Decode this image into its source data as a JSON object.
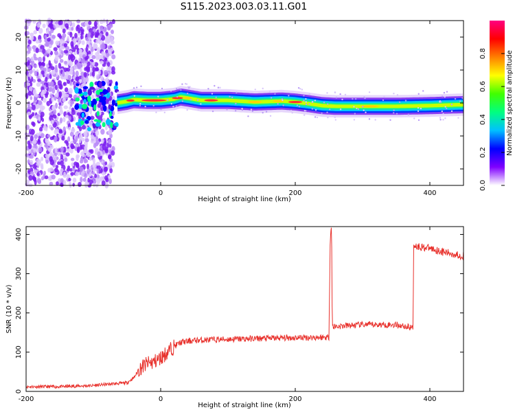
{
  "title": "S115.2023.003.03.11.G01",
  "chart_data": [
    {
      "type": "heatmap",
      "xlabel": "Height of straight line (km)",
      "ylabel": "Frequency (Hz)",
      "xlim": [
        -200,
        450
      ],
      "ylim": [
        -25,
        25
      ],
      "xticks": [
        -200,
        0,
        200,
        400
      ],
      "yticks": [
        20,
        10,
        0,
        -10,
        -20
      ],
      "colorbar": {
        "label": "Normalized spectral amplitude",
        "range": [
          0,
          1
        ],
        "ticks": [
          "0.0",
          "0.2",
          "0.4",
          "0.6",
          "0.8"
        ],
        "colormap": [
          "#ffffff",
          "#8000ff",
          "#0000ff",
          "#00c0ff",
          "#00ff80",
          "#40ff00",
          "#ffff00",
          "#ff8000",
          "#ff0000",
          "#ff0080"
        ]
      },
      "ridge": {
        "x": [
          -65,
          -50,
          -40,
          -20,
          0,
          20,
          30,
          40,
          60,
          100,
          140,
          180,
          200,
          220,
          240,
          260,
          300,
          350,
          400,
          450
        ],
        "y": [
          0,
          0.5,
          1.0,
          0.8,
          0.8,
          1.2,
          1.8,
          1.5,
          0.8,
          0.8,
          0.3,
          0.6,
          0.3,
          -0.2,
          -0.8,
          -1.0,
          -1.0,
          -1.0,
          -0.8,
          -0.5
        ]
      },
      "noise_region": {
        "x": [
          -200,
          -70
        ],
        "y": [
          -25,
          25
        ]
      },
      "grid": false,
      "legend": "none"
    },
    {
      "type": "line",
      "xlabel": "Height of straight line (km)",
      "ylabel": "SNR (10 * v/v)",
      "xlim": [
        -200,
        450
      ],
      "ylim": [
        0,
        420
      ],
      "xticks": [
        -200,
        0,
        200,
        400
      ],
      "yticks": [
        0,
        100,
        200,
        300,
        400
      ],
      "color": "#e8302b",
      "series": [
        {
          "x": [
            -200,
            -150,
            -100,
            -80,
            -50,
            -40,
            -30,
            -20,
            -10,
            0,
            10,
            20,
            30,
            50,
            100,
            150,
            200,
            250,
            252,
            254,
            255,
            256,
            300,
            350,
            375,
            376,
            380,
            400,
            420,
            450
          ],
          "y": [
            12,
            12,
            15,
            18,
            22,
            35,
            60,
            70,
            75,
            85,
            100,
            115,
            125,
            130,
            133,
            135,
            137,
            138,
            400,
            420,
            165,
            165,
            170,
            170,
            162,
            375,
            370,
            365,
            355,
            345
          ]
        }
      ],
      "grid": false,
      "legend": "none"
    }
  ]
}
